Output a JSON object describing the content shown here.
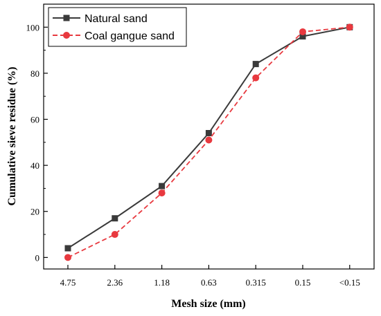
{
  "chart_data": {
    "type": "line",
    "categories": [
      "4.75",
      "2.36",
      "1.18",
      "0.63",
      "0.315",
      "0.15",
      "<0.15"
    ],
    "series": [
      {
        "name": "Natural sand",
        "values": [
          4,
          17,
          31,
          54,
          84,
          96,
          100
        ],
        "color": "#3a3a3a",
        "marker": "square",
        "line_style": "solid"
      },
      {
        "name": "Coal gangue sand",
        "values": [
          0,
          10,
          28,
          51,
          78,
          98,
          100
        ],
        "color": "#e8393f",
        "marker": "circle",
        "line_style": "dashed"
      }
    ],
    "xlabel": "Mesh size (mm)",
    "ylabel": "Cumulative sieve residue (%)",
    "ylim": [
      -5,
      110
    ],
    "yticks": [
      0,
      20,
      40,
      60,
      80,
      100
    ],
    "grid": false,
    "legend_position": "top-left"
  }
}
